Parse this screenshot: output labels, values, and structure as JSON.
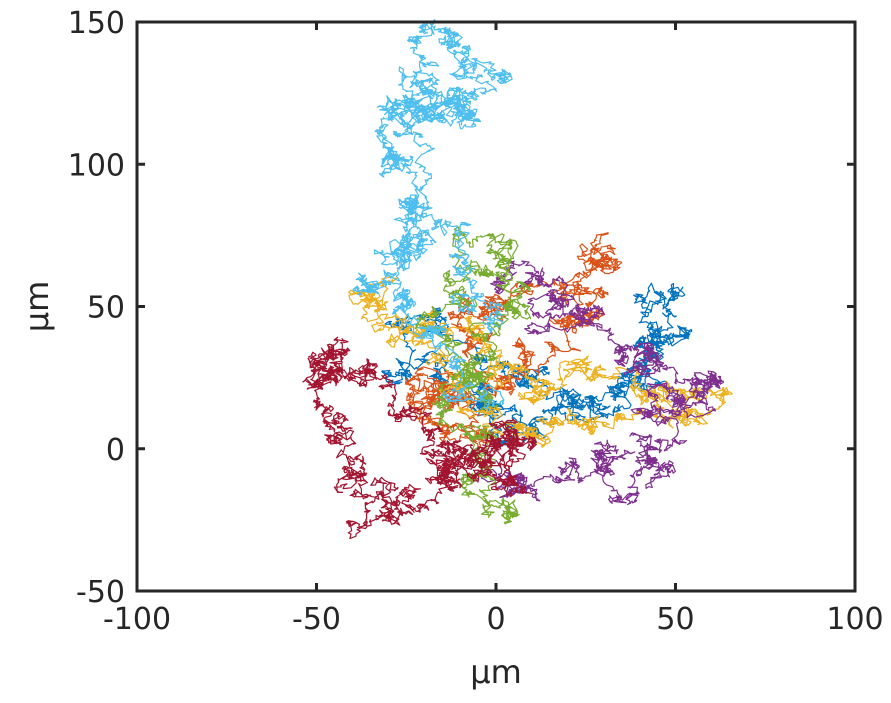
{
  "chart_data": {
    "type": "line",
    "title": "",
    "xlabel": "μm",
    "ylabel": "μm",
    "xlim": [
      -100,
      100
    ],
    "ylim": [
      -50,
      150
    ],
    "xticks": [
      -100,
      -50,
      0,
      50,
      100
    ],
    "yticks": [
      -50,
      0,
      50,
      100,
      150
    ],
    "xtick_labels": [
      "-100",
      "-50",
      "0",
      "50",
      "100"
    ],
    "ytick_labels": [
      "-50",
      "0",
      "50",
      "100",
      "150"
    ],
    "grid": false,
    "legend": "none",
    "series": [
      {
        "color": "#0072BD",
        "x": [
          2,
          -6,
          -20,
          -25,
          -12,
          8,
          22,
          30,
          42,
          46,
          52,
          44,
          38,
          24,
          10,
          0
        ],
        "y": [
          14,
          22,
          32,
          44,
          38,
          22,
          16,
          12,
          26,
          36,
          55,
          40,
          28,
          10,
          6,
          12
        ]
      },
      {
        "color": "#D95319",
        "x": [
          -4,
          -14,
          -24,
          -18,
          -10,
          2,
          12,
          24,
          32,
          28,
          20,
          8,
          0,
          -10,
          -20,
          -8
        ],
        "y": [
          12,
          4,
          18,
          28,
          44,
          52,
          58,
          72,
          66,
          54,
          46,
          30,
          22,
          14,
          24,
          18
        ]
      },
      {
        "color": "#EDB120",
        "x": [
          2,
          -10,
          -22,
          -34,
          -28,
          -14,
          0,
          14,
          22,
          36,
          56,
          52,
          40,
          26,
          12,
          4
        ],
        "y": [
          6,
          22,
          42,
          56,
          48,
          42,
          30,
          24,
          30,
          28,
          20,
          12,
          18,
          10,
          2,
          10
        ]
      },
      {
        "color": "#7E2F8E",
        "x": [
          2,
          12,
          18,
          26,
          34,
          42,
          50,
          56,
          58,
          50,
          46,
          48,
          38,
          28,
          18,
          6,
          0
        ],
        "y": [
          56,
          60,
          52,
          44,
          30,
          32,
          26,
          24,
          18,
          12,
          2,
          -8,
          -16,
          -6,
          -8,
          -14,
          -4
        ]
      },
      {
        "color": "#77AC30",
        "x": [
          0,
          -6,
          -14,
          -10,
          -4,
          4,
          8,
          2,
          -6,
          -12,
          -6,
          2,
          -2
        ],
        "y": [
          14,
          26,
          40,
          54,
          62,
          66,
          58,
          44,
          30,
          6,
          -10,
          -18,
          8
        ]
      },
      {
        "color": "#4DBEEE",
        "x": [
          -2,
          -12,
          -22,
          -28,
          -32,
          -26,
          -22,
          -24,
          -28,
          -32,
          -30,
          -24,
          -22,
          -18,
          -16,
          -10,
          -6,
          -2,
          -10,
          -20,
          -28,
          -16,
          -8,
          -2
        ],
        "y": [
          14,
          28,
          44,
          56,
          58,
          64,
          72,
          84,
          100,
          110,
          118,
          122,
          116,
          118,
          124,
          118,
          126,
          132,
          142,
          138,
          110,
          78,
          60,
          40
        ]
      },
      {
        "color": "#A2142F",
        "x": [
          -2,
          -10,
          -18,
          -28,
          -40,
          -50,
          -42,
          -44,
          -50,
          -44,
          -38,
          -32,
          -28,
          -20,
          -14,
          -10,
          -4,
          4,
          10,
          2,
          -6
        ],
        "y": [
          -6,
          0,
          6,
          18,
          26,
          24,
          38,
          32,
          16,
          4,
          -10,
          -16,
          -26,
          -20,
          -10,
          -2,
          -8,
          -12,
          4,
          8,
          -2
        ]
      }
    ]
  }
}
